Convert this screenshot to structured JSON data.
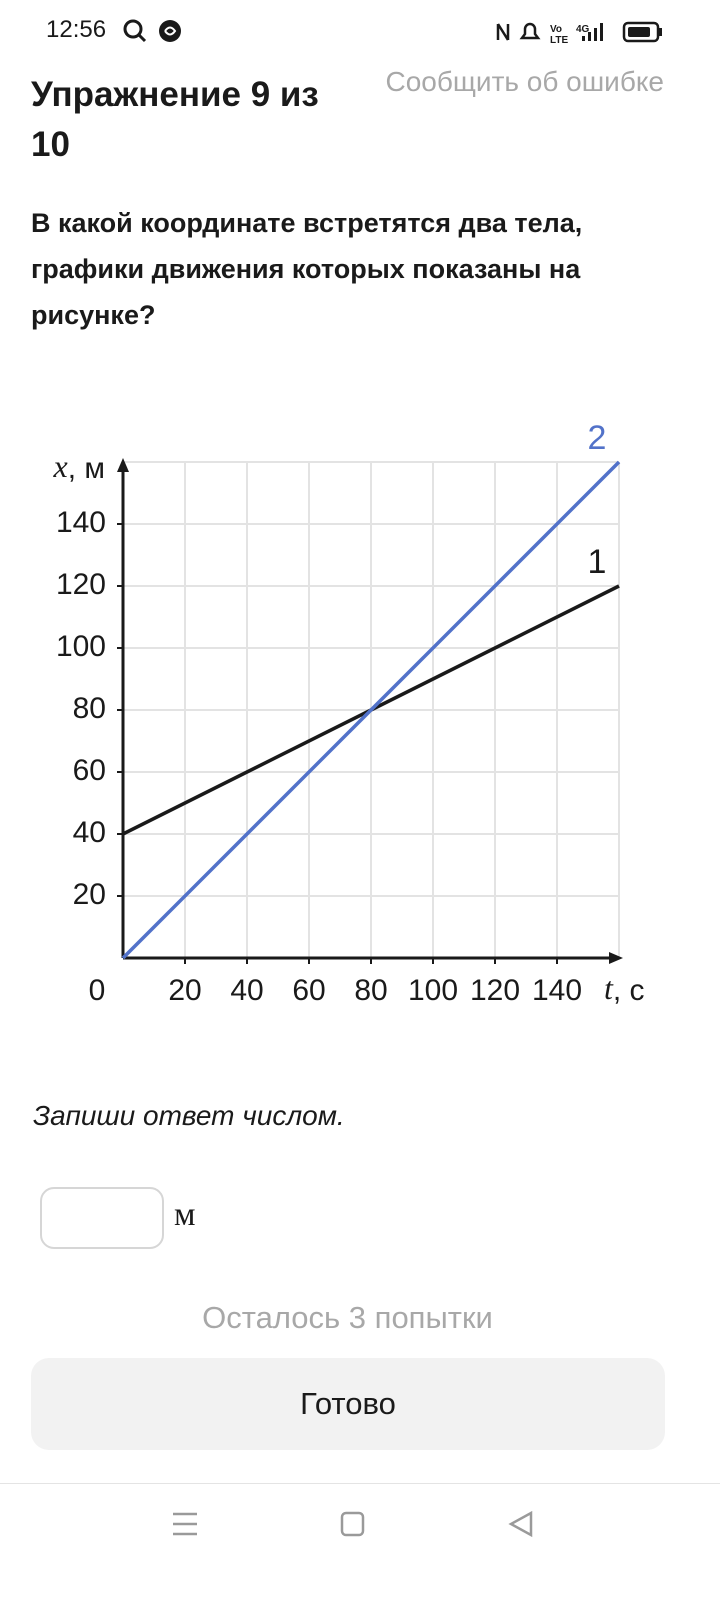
{
  "status_bar": {
    "time": "12:56"
  },
  "header": {
    "title": "Упражнение 9 из 10",
    "report": "Сообщить об ошибке"
  },
  "question": "В какой координате встретятся два тела, графики движения которых показаны на рисунке?",
  "chart_data": {
    "type": "line",
    "x": [
      0,
      160
    ],
    "series": [
      {
        "name": "1",
        "color": "#1a1a1a",
        "values": [
          40,
          120
        ]
      },
      {
        "name": "2",
        "color": "#5272c9",
        "values": [
          0,
          160
        ]
      }
    ],
    "xlim": [
      0,
      160
    ],
    "ylim": [
      0,
      160
    ],
    "xticks": [
      0,
      20,
      40,
      60,
      80,
      100,
      120,
      140
    ],
    "yticks": [
      20,
      40,
      60,
      80,
      100,
      120,
      140
    ],
    "xlabel_var": "t",
    "xlabel_unit": ", с",
    "ylabel_var": "x",
    "ylabel_unit": ", м",
    "grid": true
  },
  "instruction": "Запиши ответ числом.",
  "answer": {
    "unit": "м"
  },
  "attempts": "Осталось 3 попытки",
  "button": "Готово"
}
